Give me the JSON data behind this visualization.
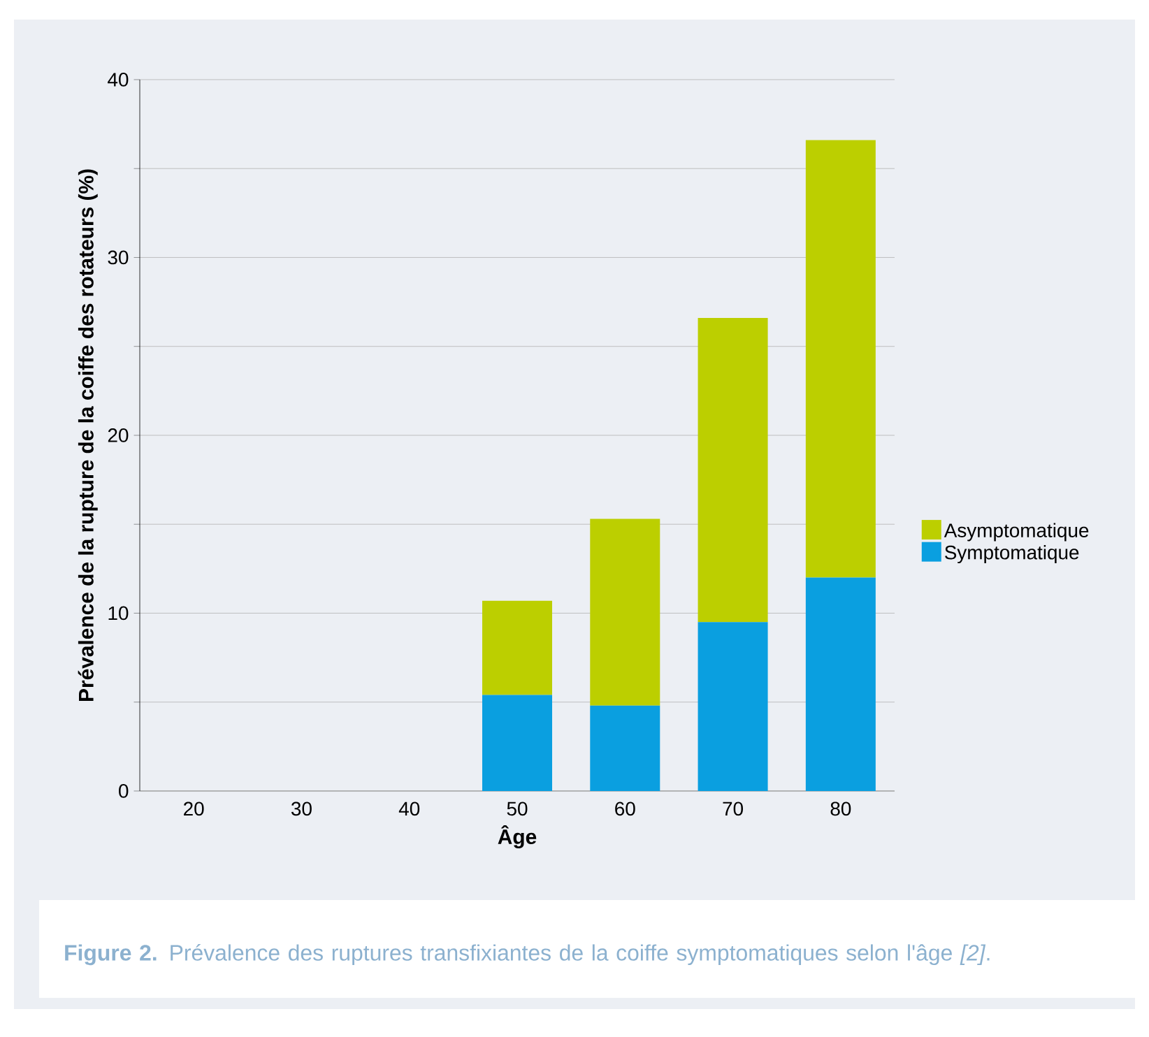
{
  "chart_data": {
    "type": "bar",
    "stacked": true,
    "categories": [
      "20",
      "30",
      "40",
      "50",
      "60",
      "70",
      "80"
    ],
    "series": [
      {
        "name": "Symptomatique",
        "color": "#0a9fe0",
        "values": [
          0,
          0,
          0,
          5.4,
          4.8,
          9.5,
          12.0
        ]
      },
      {
        "name": "Asymptomatique",
        "color": "#bccf00",
        "values": [
          0,
          0,
          0,
          5.3,
          10.5,
          17.1,
          24.6
        ]
      }
    ],
    "xlabel": "Âge",
    "ylabel": "Prévalence de la rupture de la coiffe des rotateurs (%)",
    "ylim": [
      0,
      40
    ],
    "yticks": [
      0,
      {
        "value": 5,
        "label": null
      },
      10,
      {
        "value": 15,
        "label": null
      },
      20,
      {
        "value": 25,
        "label": null
      },
      30,
      {
        "value": 35,
        "label": null
      },
      40
    ],
    "grid": "y",
    "legend": "right",
    "annotations": [
      "**Figure 2.** Prévalence des ruptures transfixiantes de la coiffe symptomatiques selon l'âge *[2]*."
    ]
  }
}
